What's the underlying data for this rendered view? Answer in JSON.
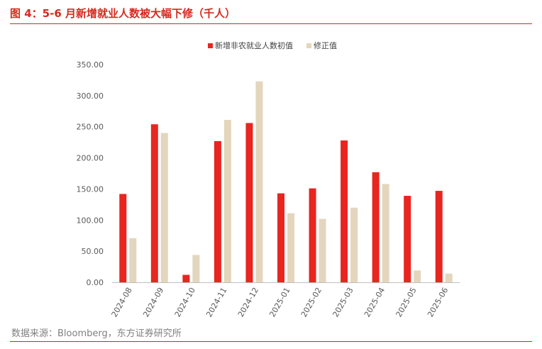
{
  "title": "图 4：5-6 月新增就业人数被大幅下修（千人）",
  "source": "数据来源：Bloomberg，东方证券研究所",
  "colors": {
    "initial": "#e8251f",
    "revised": "#e3d6bd",
    "accent": "#d42a1e"
  },
  "chart_data": {
    "type": "bar",
    "categories": [
      "2024-08",
      "2024-09",
      "2024-10",
      "2024-11",
      "2024-12",
      "2025-01",
      "2025-02",
      "2025-03",
      "2025-04",
      "2025-05",
      "2025-06"
    ],
    "series": [
      {
        "name": "新增非农就业人数初值",
        "values": [
          142,
          254,
          12,
          227,
          256,
          143,
          151,
          228,
          177,
          139,
          147
        ]
      },
      {
        "name": "修正值",
        "values": [
          71,
          240,
          44,
          261,
          323,
          111,
          102,
          120,
          158,
          19,
          14
        ]
      }
    ],
    "ylim": [
      0,
      350
    ],
    "yticks": [
      "0.00",
      "50.00",
      "100.00",
      "150.00",
      "200.00",
      "250.00",
      "300.00",
      "350.00"
    ],
    "legend_position": "top",
    "grid": false
  }
}
